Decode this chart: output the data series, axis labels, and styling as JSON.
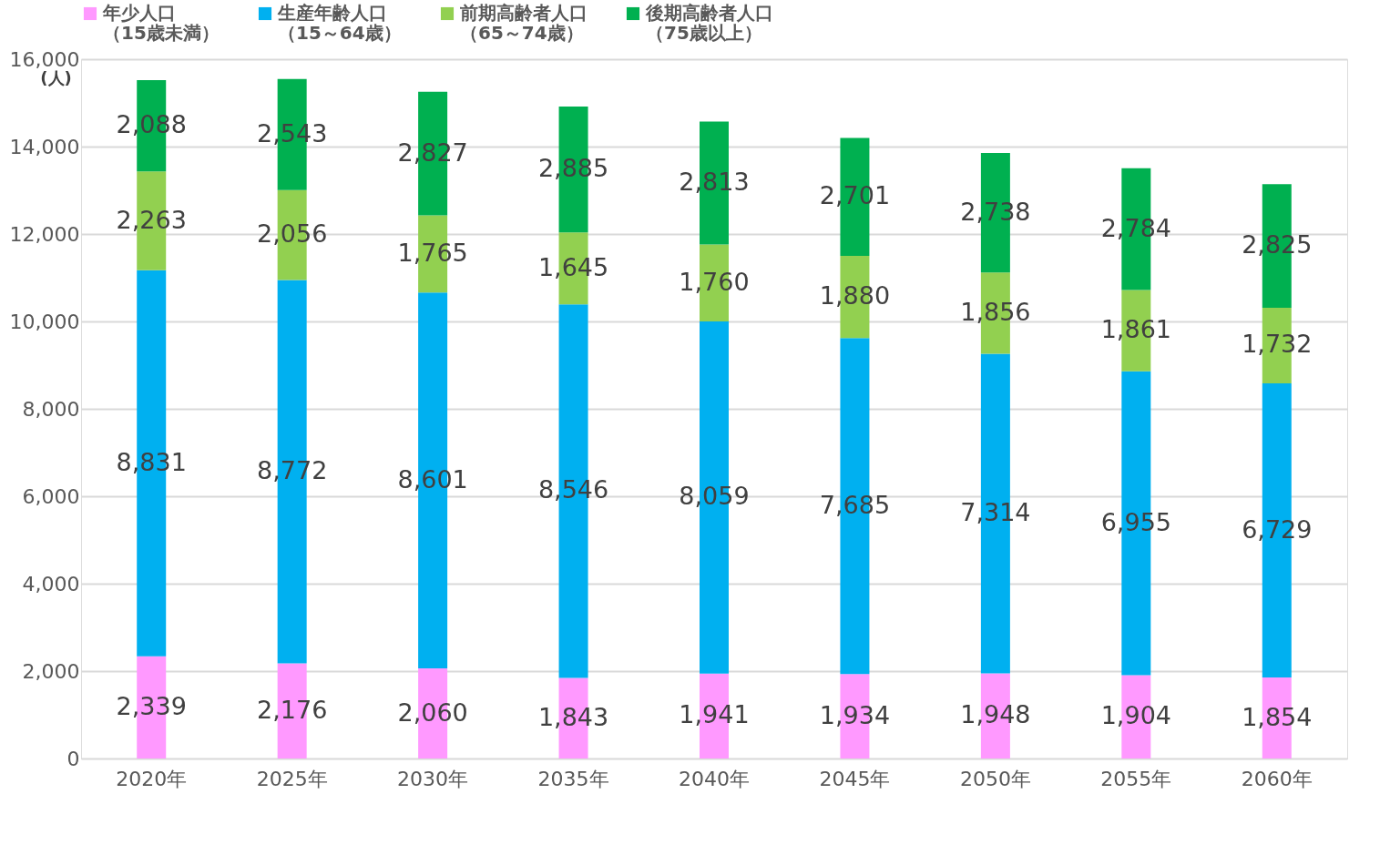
{
  "chart_data": {
    "type": "bar",
    "stacked": true,
    "ylabel": "(人)",
    "categories": [
      "2020年",
      "2025年",
      "2030年",
      "2035年",
      "2040年",
      "2045年",
      "2050年",
      "2055年",
      "2060年"
    ],
    "series": [
      {
        "name": "年少人口（15歳未満）",
        "color": "#ff99ff",
        "values": [
          2339,
          2176,
          2060,
          1843,
          1941,
          1934,
          1948,
          1904,
          1854
        ],
        "value_labels": [
          "2,339",
          "2,176",
          "2,060",
          "1,843",
          "1,941",
          "1,934",
          "1,948",
          "1,904",
          "1,854"
        ]
      },
      {
        "name": "生産年齢人口（15～64歳）",
        "color": "#00b0f0",
        "values": [
          8831,
          8772,
          8601,
          8546,
          8059,
          7685,
          7314,
          6955,
          6729
        ],
        "value_labels": [
          "8,831",
          "8,772",
          "8,601",
          "8,546",
          "8,059",
          "7,685",
          "7,314",
          "6,955",
          "6,729"
        ]
      },
      {
        "name": "前期高齢者人口（65～74歳）",
        "color": "#92d050",
        "values": [
          2263,
          2056,
          1765,
          1645,
          1760,
          1880,
          1856,
          1861,
          1732
        ],
        "value_labels": [
          "2,263",
          "2,056",
          "1,765",
          "1,645",
          "1,760",
          "1,880",
          "1,856",
          "1,861",
          "1,732"
        ]
      },
      {
        "name": "後期高齢者人口（75歳以上）",
        "color": "#00b050",
        "values": [
          2088,
          2543,
          2827,
          2885,
          2813,
          2701,
          2738,
          2784,
          2825
        ],
        "value_labels": [
          "2,088",
          "2,543",
          "2,827",
          "2,885",
          "2,813",
          "2,701",
          "2,738",
          "2,784",
          "2,825"
        ]
      }
    ],
    "ylim": [
      0,
      16000
    ],
    "yticks": [
      0,
      {
        "value": 2000,
        "label": "2,000"
      },
      {
        "value": 4000,
        "label": "4,000"
      },
      {
        "value": 6000,
        "label": "6,000"
      },
      {
        "value": 8000,
        "label": "8,000"
      },
      {
        "value": 10000,
        "label": "10,000"
      },
      {
        "value": 12000,
        "label": "12,000"
      },
      {
        "value": 14000,
        "label": "14,000"
      },
      {
        "value": 16000,
        "label": "16,000"
      }
    ],
    "grid": "y",
    "legend": "top"
  }
}
